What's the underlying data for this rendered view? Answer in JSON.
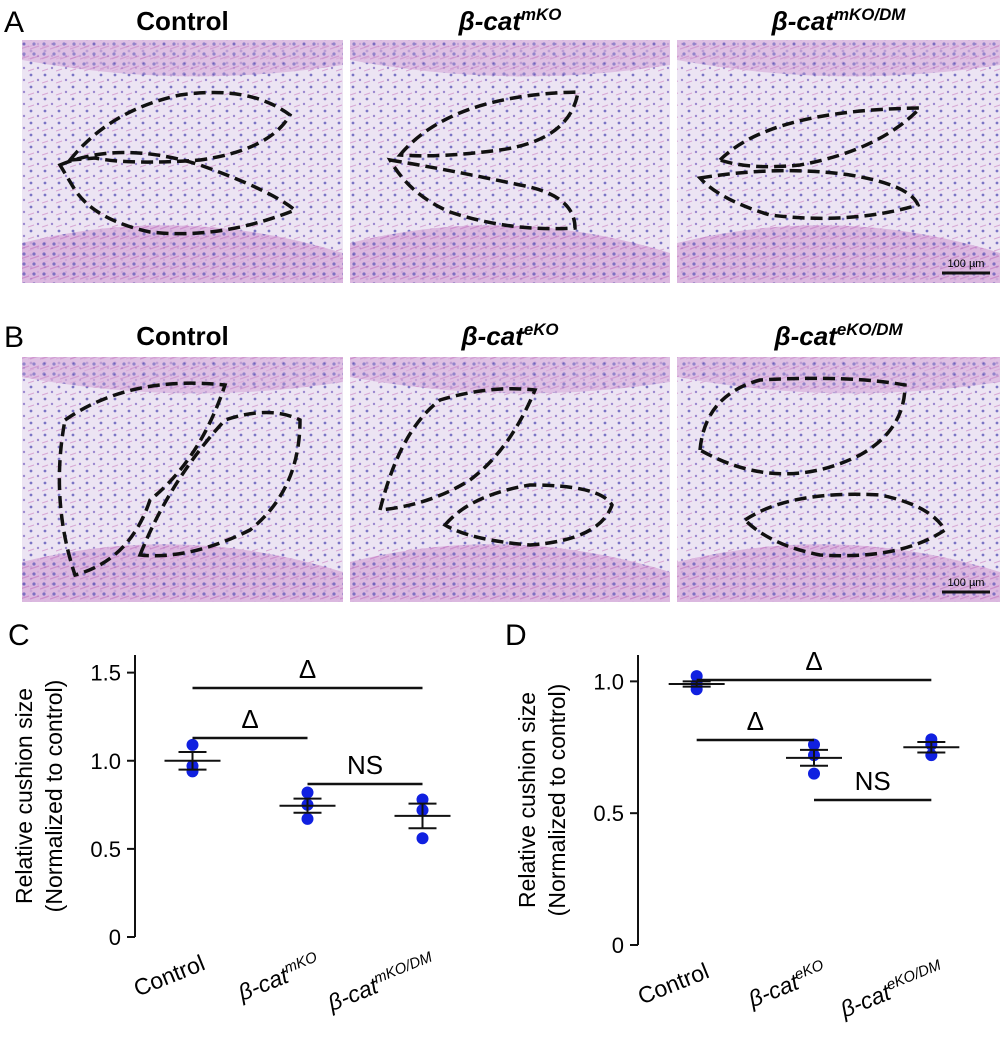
{
  "image_panels": [
    {
      "label": "A",
      "titles": [
        "Control",
        {
          "text": "β-cat",
          "sup": "mKO"
        },
        {
          "text": "β-cat",
          "sup": "mKO/DM"
        }
      ],
      "scale_bar": "100 µm"
    },
    {
      "label": "B",
      "titles": [
        "Control",
        {
          "text": "β-cat",
          "sup": "eKO"
        },
        {
          "text": "β-cat",
          "sup": "eKO/DM"
        }
      ],
      "scale_bar": "100 µm"
    }
  ],
  "chart_data": [
    {
      "type": "dot",
      "panel_label": "C",
      "ylabel": [
        "Relative cushion size",
        "(Normalized to control)"
      ],
      "categories": [
        {
          "text": "Control"
        },
        {
          "text": "β-cat",
          "sup": "mKO"
        },
        {
          "text": "β-cat",
          "sup": "mKO/DM"
        }
      ],
      "points": [
        [
          1.09,
          0.97,
          0.94
        ],
        [
          0.82,
          0.75,
          0.67
        ],
        [
          0.78,
          0.72,
          0.56
        ]
      ],
      "means": [
        1.0,
        0.745,
        0.687
      ],
      "sems": [
        0.05,
        0.04,
        0.07
      ],
      "color": "#1020e0",
      "ylim": [
        0,
        1.6
      ],
      "yticks": [
        0,
        0.5,
        {
          "value": 1,
          "label": "1.0"
        },
        1.5
      ],
      "comparisons": [
        {
          "groups": [
            0,
            2
          ],
          "label": "Δ"
        },
        {
          "groups": [
            0,
            1
          ],
          "label": "Δ"
        },
        {
          "groups": [
            1,
            2
          ],
          "label": "NS"
        }
      ]
    },
    {
      "type": "dot",
      "panel_label": "D",
      "ylabel": [
        "Relative cushion size",
        "(Normalized to control)"
      ],
      "categories": [
        {
          "text": "Control"
        },
        {
          "text": "β-cat",
          "sup": "eKO"
        },
        {
          "text": "β-cat",
          "sup": "eKO/DM"
        }
      ],
      "points": [
        [
          1.02,
          0.99,
          0.97
        ],
        [
          0.76,
          0.72,
          0.65
        ],
        [
          0.78,
          0.76,
          0.72
        ]
      ],
      "means": [
        0.99,
        0.71,
        0.75
      ],
      "sems": [
        0.01,
        0.03,
        0.02
      ],
      "color": "#1020e0",
      "ylim": [
        0,
        1.1
      ],
      "yticks": [
        0,
        0.5,
        {
          "value": 1,
          "label": "1.0"
        }
      ],
      "comparisons": [
        {
          "groups": [
            0,
            2
          ],
          "label": "Δ"
        },
        {
          "groups": [
            0,
            1
          ],
          "label": "Δ"
        },
        {
          "groups": [
            1,
            2
          ],
          "label": "NS"
        }
      ]
    }
  ]
}
